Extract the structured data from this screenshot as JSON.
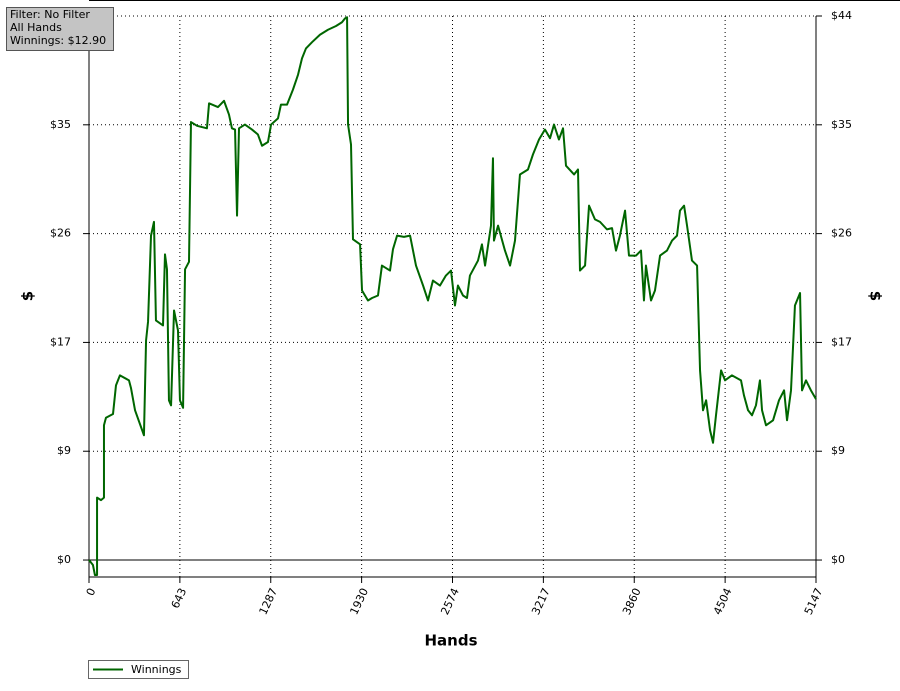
{
  "chart_data": {
    "type": "line",
    "annotations": [
      "Filter: No Filter",
      "All Hands",
      "Winnings: $12.90"
    ],
    "x_label": "Hands",
    "y_label": "$",
    "y2_label": "$",
    "x": [
      0,
      28,
      42,
      57,
      57,
      85,
      106,
      106,
      120,
      170,
      191,
      219,
      283,
      297,
      326,
      389,
      404,
      418,
      439,
      460,
      474,
      524,
      538,
      552,
      566,
      581,
      602,
      630,
      644,
      666,
      680,
      708,
      722,
      765,
      835,
      850,
      913,
      956,
      991,
      1012,
      1034,
      1048,
      1062,
      1104,
      1154,
      1196,
      1225,
      1267,
      1289,
      1338,
      1359,
      1402,
      1444,
      1480,
      1508,
      1536,
      1579,
      1635,
      1692,
      1749,
      1791,
      1812,
      1827,
      1834,
      1855,
      1869,
      1919,
      1933,
      1975,
      2004,
      2046,
      2074,
      2131,
      2152,
      2181,
      2230,
      2273,
      2315,
      2365,
      2400,
      2435,
      2485,
      2527,
      2563,
      2591,
      2612,
      2648,
      2676,
      2697,
      2754,
      2782,
      2804,
      2846,
      2860,
      2867,
      2896,
      2945,
      2981,
      3016,
      3051,
      3108,
      3143,
      3186,
      3228,
      3264,
      3292,
      3327,
      3356,
      3377,
      3434,
      3462,
      3476,
      3512,
      3540,
      3582,
      3618,
      3667,
      3703,
      3731,
      3759,
      3795,
      3823,
      3873,
      3908,
      3929,
      3943,
      3979,
      4007,
      4043,
      4092,
      4128,
      4163,
      4184,
      4213,
      4234,
      4269,
      4305,
      4326,
      4347,
      4369,
      4397,
      4418,
      4439,
      4475,
      4503,
      4552,
      4616,
      4637,
      4666,
      4694,
      4722,
      4750,
      4765,
      4793,
      4843,
      4885,
      4921,
      4942,
      4970,
      4998,
      5034,
      5048,
      5076,
      5111,
      5147
    ],
    "series": [
      {
        "name": "Winnings",
        "color": "#006600",
        "values": [
          0,
          -0.4,
          -1.2,
          -1.2,
          5.0,
          4.8,
          5.0,
          10.8,
          11.4,
          11.7,
          14.0,
          14.8,
          14.4,
          13.8,
          12.0,
          10.0,
          17.6,
          19.1,
          26.0,
          27.1,
          19.2,
          18.8,
          24.5,
          23.3,
          12.8,
          12.4,
          20.0,
          18.4,
          12.8,
          12.2,
          23.3,
          23.9,
          35.1,
          34.8,
          34.6,
          36.6,
          36.3,
          36.8,
          35.7,
          34.6,
          34.5,
          27.6,
          34.6,
          34.9,
          34.5,
          34.1,
          33.2,
          33.5,
          34.9,
          35.4,
          36.5,
          36.5,
          37.7,
          38.9,
          40.2,
          41.0,
          41.5,
          42.1,
          42.5,
          42.8,
          43.1,
          43.4,
          43.5,
          34.9,
          33.3,
          25.7,
          25.3,
          21.6,
          20.8,
          21.0,
          21.2,
          23.6,
          23.2,
          24.9,
          26.0,
          25.9,
          26.0,
          23.6,
          22.0,
          20.8,
          22.4,
          22.0,
          22.8,
          23.2,
          20.4,
          22.0,
          21.2,
          21.0,
          22.8,
          24.0,
          25.3,
          23.6,
          26.8,
          32.2,
          25.6,
          26.8,
          24.8,
          23.6,
          25.6,
          30.9,
          31.3,
          32.5,
          33.7,
          34.5,
          33.8,
          34.9,
          33.7,
          34.6,
          31.6,
          30.9,
          31.3,
          23.2,
          23.6,
          28.4,
          27.3,
          27.1,
          26.5,
          26.6,
          24.8,
          26.0,
          28.0,
          24.4,
          24.4,
          24.8,
          20.8,
          23.6,
          20.8,
          21.6,
          24.4,
          24.8,
          25.6,
          26.0,
          28.0,
          28.4,
          26.8,
          24.0,
          23.6,
          15.2,
          12.0,
          12.8,
          10.4,
          9.4,
          11.6,
          15.2,
          14.4,
          14.8,
          14.4,
          13.2,
          12.0,
          11.6,
          12.4,
          14.4,
          12.0,
          10.8,
          11.2,
          12.8,
          13.6,
          11.2,
          13.6,
          20.4,
          21.4,
          13.6,
          14.4,
          13.6,
          12.9
        ]
      }
    ],
    "xlim": [
      0,
      5147
    ],
    "xticks": [
      0,
      {
        "value": 643.375,
        "label": "643"
      },
      {
        "value": 1286.75,
        "label": "1287"
      },
      {
        "value": 1930.125,
        "label": "1930"
      },
      {
        "value": 2573.5,
        "label": "2574"
      },
      {
        "value": 3216.875,
        "label": "3217"
      },
      {
        "value": 3860.25,
        "label": "3860"
      },
      {
        "value": 4503.625,
        "label": "4504"
      },
      5147
    ],
    "ylim": [
      -1.36,
      43.6
    ],
    "yticks": [
      {
        "value": 0,
        "label": "$0"
      },
      {
        "value": 8.72,
        "label": "$9"
      },
      {
        "value": 17.44,
        "label": "$17"
      },
      {
        "value": 26.16,
        "label": "$26"
      },
      {
        "value": 34.88,
        "label": "$35"
      },
      {
        "value": 43.6,
        "label": "$44"
      }
    ],
    "y2lim": [
      -1.36,
      43.6
    ],
    "y2ticks": [
      {
        "value": 0,
        "label": "$0"
      },
      {
        "value": 8.72,
        "label": "$9"
      },
      {
        "value": 17.44,
        "label": "$17"
      },
      {
        "value": 26.16,
        "label": "$26"
      },
      {
        "value": 34.88,
        "label": "$35"
      },
      {
        "value": 43.6,
        "label": "$44"
      }
    ],
    "grid": true,
    "legend": "bottom-left"
  }
}
